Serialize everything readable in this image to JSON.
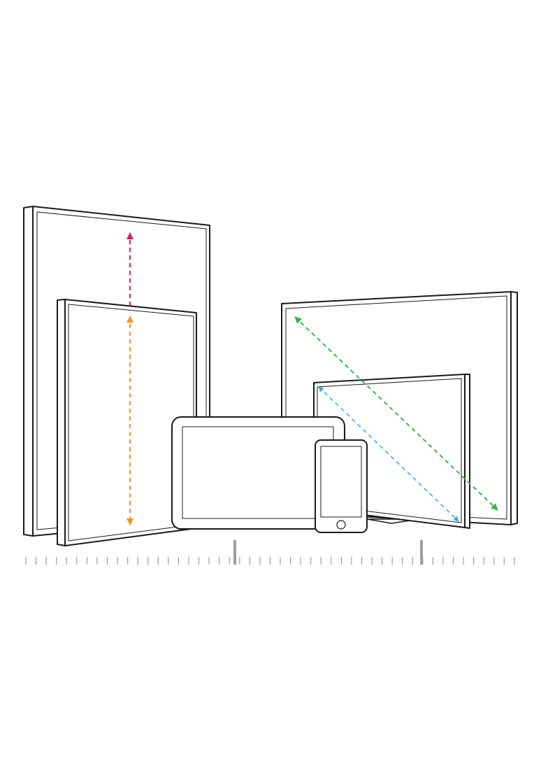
{
  "diagram": {
    "background": "#ffffff",
    "line_color": "#1a1a1a",
    "scale_color": "#9e9e9e",
    "arrows": [
      {
        "id": "tall-portrait-height-arrow",
        "color": "#d81b60"
      },
      {
        "id": "small-portrait-height-arrow",
        "color": "#f7941d"
      },
      {
        "id": "large-landscape-diagonal-arrow",
        "color": "#39b54a"
      },
      {
        "id": "small-landscape-diagonal-arrow",
        "color": "#29abe2"
      }
    ],
    "devices": [
      {
        "id": "tall-portrait-screen"
      },
      {
        "id": "small-portrait-screen"
      },
      {
        "id": "large-landscape-screen"
      },
      {
        "id": "small-landscape-screen"
      },
      {
        "id": "tablet"
      },
      {
        "id": "smartphone"
      }
    ]
  }
}
